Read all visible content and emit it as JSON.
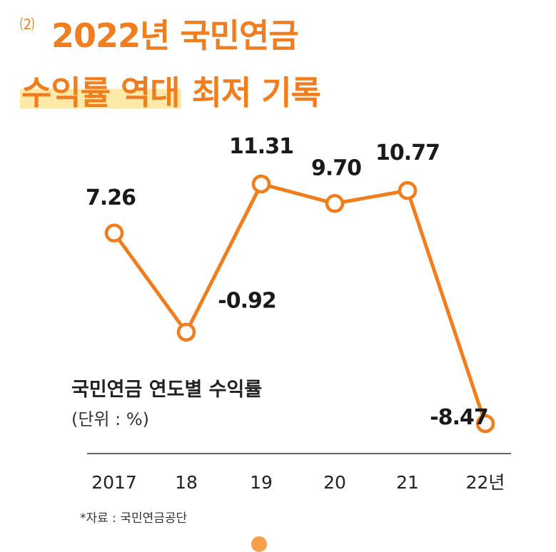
{
  "header": {
    "number": "⑵",
    "title_line1": "2022년 국민연금",
    "title_line2_highlight": "수익률 역대",
    "title_line2_rest": " 최저 기록"
  },
  "chart_data": {
    "type": "line",
    "categories": [
      "2017",
      "18",
      "19",
      "20",
      "21",
      "22년"
    ],
    "values": [
      7.26,
      -0.92,
      11.31,
      9.7,
      10.77,
      -8.47
    ],
    "labels": [
      "7.26",
      "-0.92",
      "11.31",
      "9.70",
      "10.77",
      "-8.47"
    ],
    "title": "국민연금 연도별 수익률",
    "unit_label": "(단위 : %)",
    "ylim": [
      -8.47,
      11.31
    ],
    "grid": false,
    "colors": {
      "line": "#f07d1e",
      "axis": "#333333",
      "marker_fill": "#ffffff"
    }
  },
  "footer": {
    "source": "*자료 : 국민연금공단"
  }
}
